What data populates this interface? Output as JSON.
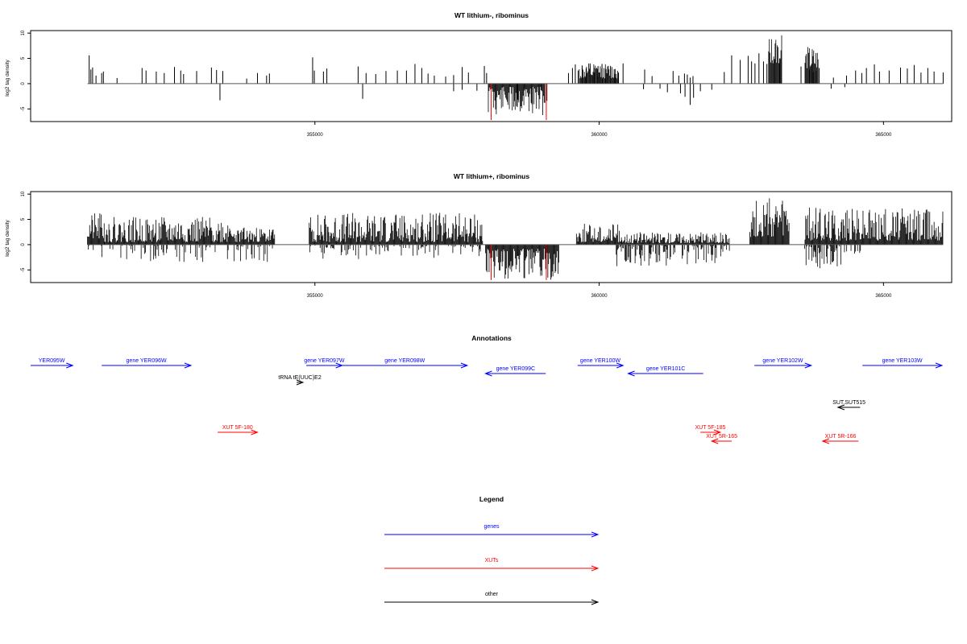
{
  "chart_data": [
    {
      "type": "bar",
      "title": "WT lithium-, ribominus",
      "ylabel": "log2 tag density",
      "xlim": [
        350000,
        366200
      ],
      "ylim": [
        -7.5,
        10.5
      ],
      "yticks": [
        -5,
        0,
        5,
        10
      ],
      "ytick_labels": [
        "-5",
        "0",
        "5",
        "10"
      ],
      "xticks": [
        355000,
        360000,
        365000
      ],
      "xtick_labels": [
        "355000",
        "360000",
        "365000"
      ],
      "series": [
        {
          "color": "#000000",
          "x": [
            351030,
            351060,
            351090,
            351150,
            351250,
            351280,
            351520,
            351960,
            352030,
            352210,
            352350,
            352530,
            352640,
            352690,
            352920,
            353180,
            353270,
            353380,
            353800,
            353990,
            354150,
            354200,
            354960,
            354990,
            355150,
            355210,
            355760,
            355900,
            356070,
            356250,
            356450,
            356610,
            356760,
            356880,
            356990,
            357100,
            357300,
            357440,
            357590,
            357700,
            357980,
            358020,
            359460,
            359530,
            359580,
            359630,
            359700,
            359770,
            359840,
            359910,
            359980,
            360050,
            360120,
            360200,
            360280,
            360340,
            360420,
            360800,
            360930,
            361300,
            361400,
            361500,
            361550,
            361600,
            361650,
            362200,
            362330,
            362480,
            362620,
            362680,
            362740,
            362810,
            362890,
            362950,
            363180,
            363550,
            363700,
            363760,
            363820,
            363870,
            364120,
            364350,
            364510,
            364620,
            364700,
            364840,
            364930,
            365100,
            365300,
            365420,
            365540,
            365660,
            365780,
            365890,
            366050
          ],
          "values": [
            5.6,
            2.8,
            3.2,
            1.6,
            2.1,
            2.4,
            1.1,
            3.1,
            2.6,
            2.4,
            2.1,
            3.3,
            2.6,
            1.9,
            2.5,
            3.2,
            2.7,
            2.5,
            1.0,
            2.1,
            1.6,
            2.0,
            5.2,
            2.6,
            2.4,
            3.0,
            3.4,
            2.1,
            1.9,
            2.5,
            2.6,
            2.6,
            3.9,
            3.1,
            2.0,
            1.6,
            1.4,
            1.7,
            3.3,
            2.2,
            3.5,
            2.1,
            2.1,
            3.1,
            3.8,
            2.6,
            3.6,
            3.0,
            4.0,
            3.1,
            3.5,
            3.9,
            2.9,
            3.5,
            2.9,
            2.2,
            4.0,
            2.8,
            1.5,
            2.5,
            1.6,
            2.0,
            1.8,
            1.2,
            1.5,
            2.3,
            5.6,
            4.7,
            5.5,
            4.4,
            4.0,
            6.0,
            4.4,
            3.9,
            5.0,
            3.4,
            2.8,
            2.3,
            2.5,
            3.1,
            1.2,
            1.6,
            2.6,
            2.1,
            3.1,
            3.8,
            2.4,
            2.6,
            3.2,
            3.0,
            3.7,
            2.2,
            3.1,
            2.4,
            2.2
          ]
        },
        {
          "color": "#000000",
          "x": [
            353330,
            355840,
            357440,
            357590,
            357850,
            358560,
            358980,
            359080,
            360780,
            361070,
            361200,
            361430,
            361510,
            361600,
            361660,
            361780,
            361980,
            364080,
            364320
          ],
          "values": [
            -3.3,
            -3.0,
            -1.5,
            -1.2,
            -1.4,
            -3.0,
            -1.3,
            -3.4,
            -1.1,
            -1.0,
            -1.7,
            -1.9,
            -2.6,
            -4.2,
            -2.8,
            -1.5,
            -1.2,
            -1.0,
            -0.7
          ]
        },
        {
          "color": "#000000",
          "density": [
            {
              "from": 358050,
              "to": 359050,
              "min": -6.5,
              "max": -0.6,
              "seed": 11
            },
            {
              "from": 359650,
              "to": 360350,
              "min": 1.0,
              "max": 4.0,
              "seed": 12
            },
            {
              "from": 362980,
              "to": 363220,
              "min": 4.0,
              "max": 9.8,
              "seed": 13
            },
            {
              "from": 363620,
              "to": 363850,
              "min": 3.0,
              "max": 7.6,
              "seed": 14
            }
          ]
        },
        {
          "color": "#ff0000",
          "x": [
            358100,
            359070
          ],
          "values": [
            -7.2,
            -7.2
          ]
        }
      ]
    },
    {
      "type": "bar",
      "title": "WT lithium+, ribominus",
      "ylabel": "log2 tag density",
      "xlim": [
        350000,
        366200
      ],
      "ylim": [
        -7.5,
        10.5
      ],
      "yticks": [
        -5,
        0,
        5,
        10
      ],
      "ytick_labels": [
        "-5",
        "0",
        "5",
        "10"
      ],
      "xticks": [
        355000,
        360000,
        365000
      ],
      "xtick_labels": [
        "355000",
        "360000",
        "365000"
      ],
      "series": [
        {
          "color": "#000000",
          "density": [
            {
              "from": 351000,
              "to": 351300,
              "min": 1.0,
              "max": 6.2,
              "seed": 21
            },
            {
              "from": 351300,
              "to": 353500,
              "min": 0.5,
              "max": 5.5,
              "seed": 22
            },
            {
              "from": 353500,
              "to": 354300,
              "min": 0.5,
              "max": 3.5,
              "seed": 23
            },
            {
              "from": 354900,
              "to": 357950,
              "min": 0.5,
              "max": 6.3,
              "seed": 24
            },
            {
              "from": 359600,
              "to": 360400,
              "min": 0.5,
              "max": 4.2,
              "seed": 25
            },
            {
              "from": 360400,
              "to": 362300,
              "min": 0.3,
              "max": 2.5,
              "seed": 26
            },
            {
              "from": 362650,
              "to": 363350,
              "min": 1.5,
              "max": 9.2,
              "seed": 27
            },
            {
              "from": 363620,
              "to": 366050,
              "min": 0.8,
              "max": 7.5,
              "seed": 28
            }
          ]
        },
        {
          "color": "#000000",
          "density": [
            {
              "from": 351000,
              "to": 354300,
              "min": -3.5,
              "max": -0.2,
              "seed": 31,
              "sparse": 0.25
            },
            {
              "from": 354900,
              "to": 357950,
              "min": -3.0,
              "max": -0.2,
              "seed": 32,
              "sparse": 0.3
            },
            {
              "from": 358000,
              "to": 359300,
              "min": -7.0,
              "max": -0.8,
              "seed": 33
            },
            {
              "from": 360300,
              "to": 362300,
              "min": -4.3,
              "max": -0.2,
              "seed": 34,
              "sparse": 0.5
            },
            {
              "from": 363600,
              "to": 364600,
              "min": -4.8,
              "max": -0.3,
              "seed": 35,
              "sparse": 0.5
            }
          ]
        },
        {
          "color": "#ff0000",
          "x": [
            358100,
            359070
          ],
          "values": [
            -7.0,
            -7.0
          ]
        }
      ]
    }
  ],
  "annotations": {
    "title": "Annotations",
    "xlim": [
      350000,
      366200
    ],
    "colors": {
      "genes": "#0000ff",
      "XUTs": "#ff0000",
      "other": "#000000"
    },
    "features": [
      {
        "label": "YER095W",
        "start": 350000,
        "end": 350740,
        "strand": "+",
        "kind": "genes",
        "row": 0
      },
      {
        "label": "gene YER096W",
        "start": 351250,
        "end": 352820,
        "strand": "+",
        "kind": "genes",
        "row": 0
      },
      {
        "label": "gene YER097W",
        "start": 354850,
        "end": 355480,
        "strand": "+",
        "kind": "genes",
        "row": 0
      },
      {
        "label": "gene YER098W",
        "start": 355480,
        "end": 357680,
        "strand": "+",
        "kind": "genes",
        "row": 0
      },
      {
        "label": "gene YER099C",
        "start": 358000,
        "end": 359060,
        "strand": "-",
        "kind": "genes",
        "row": 1
      },
      {
        "label": "gene YER100W",
        "start": 359620,
        "end": 360420,
        "strand": "+",
        "kind": "genes",
        "row": 0
      },
      {
        "label": "gene YER101C",
        "start": 360510,
        "end": 361830,
        "strand": "-",
        "kind": "genes",
        "row": 1
      },
      {
        "label": "gene YER102W",
        "start": 362730,
        "end": 363730,
        "strand": "+",
        "kind": "genes",
        "row": 0
      },
      {
        "label": "gene YER103W",
        "start": 364630,
        "end": 366600,
        "strand": "+",
        "kind": "genes",
        "row": 0
      },
      {
        "label": "tRNA tE(UUC)E2",
        "start": 354680,
        "end": 354790,
        "strand": "+",
        "kind": "other",
        "row": 2
      },
      {
        "label": "SUT.SUT515",
        "start": 364200,
        "end": 364590,
        "strand": "-",
        "kind": "other",
        "row": 3
      },
      {
        "label": "XUT 5F-180",
        "start": 353290,
        "end": 353990,
        "strand": "+",
        "kind": "XUTs",
        "row": 4
      },
      {
        "label": "XUT 5F-185",
        "start": 361780,
        "end": 362130,
        "strand": "+",
        "kind": "XUTs",
        "row": 4
      },
      {
        "label": "XUT 5R-165",
        "start": 361980,
        "end": 362330,
        "strand": "-",
        "kind": "XUTs",
        "row": 5
      },
      {
        "label": "XUT 5R-166",
        "start": 363930,
        "end": 364560,
        "strand": "-",
        "kind": "XUTs",
        "row": 5
      }
    ]
  },
  "legend": {
    "title": "Legend",
    "items": [
      {
        "label": "genes",
        "color": "#0000ff"
      },
      {
        "label": "XUTs",
        "color": "#ff0000"
      },
      {
        "label": "other",
        "color": "#000000"
      }
    ]
  }
}
